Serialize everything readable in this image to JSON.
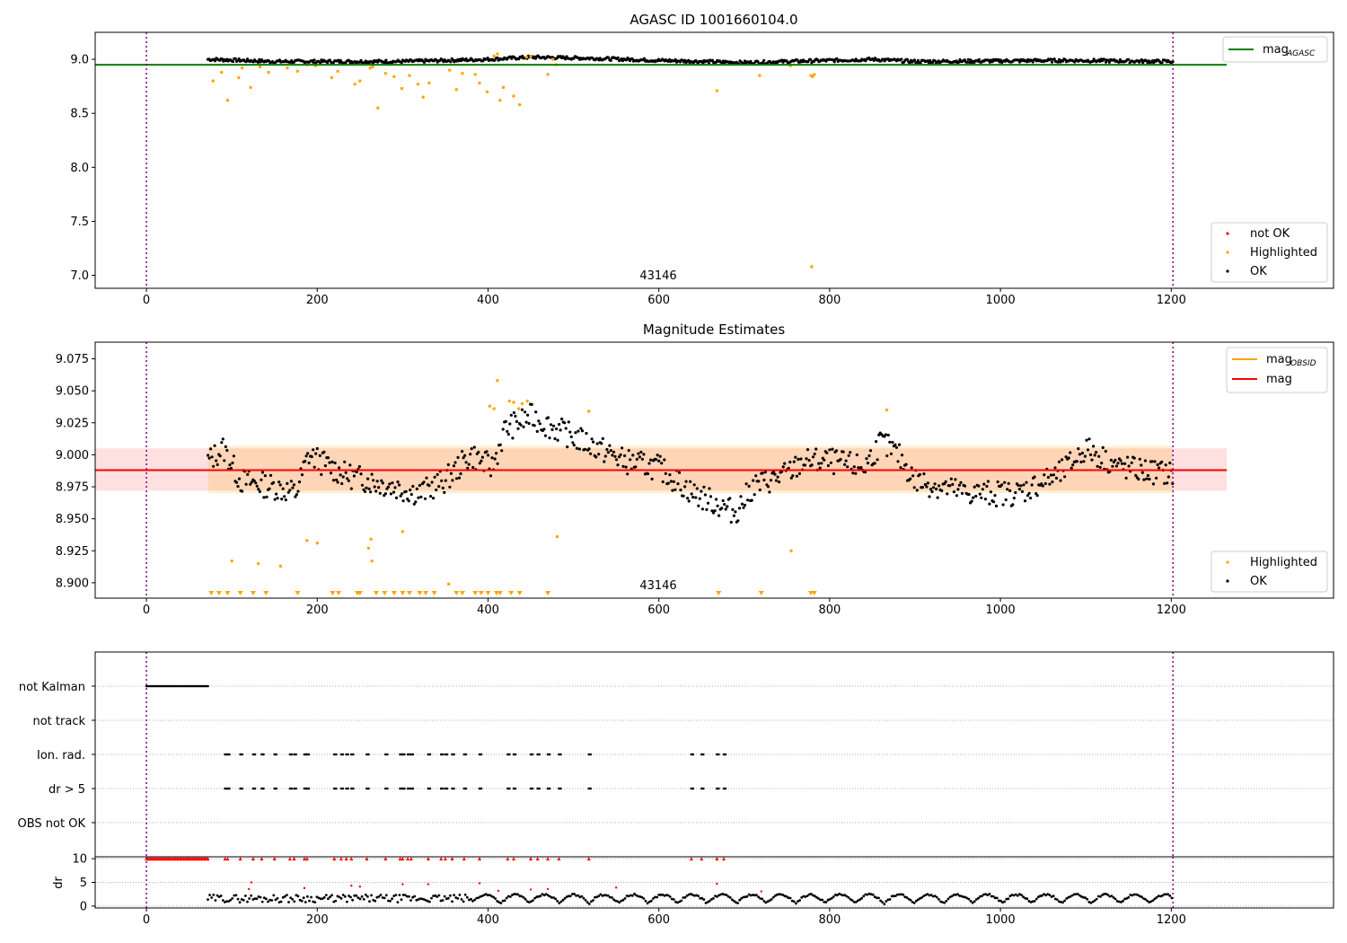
{
  "chart_data": [
    {
      "type": "scatter",
      "title": "AGASC ID 1001660104.0",
      "xlim": [
        -60,
        1390
      ],
      "ylim": [
        6.88,
        9.25
      ],
      "xticks": [
        0,
        200,
        400,
        600,
        800,
        1000,
        1200
      ],
      "yticks": [
        7.0,
        7.5,
        8.0,
        8.5,
        9.0
      ],
      "annotation": "43146",
      "vlines": [
        0,
        1202
      ],
      "reference_line": {
        "name": "mag_AGASC",
        "value": 8.95,
        "color": "#008000"
      },
      "legend_upper": [
        "mag",
        "AGASC"
      ],
      "legend_lower": [
        "not OK",
        "Highlighted",
        "OK"
      ],
      "ok_trend": [
        [
          75,
          9.0
        ],
        [
          150,
          8.98
        ],
        [
          300,
          8.98
        ],
        [
          400,
          9.0
        ],
        [
          450,
          9.02
        ],
        [
          520,
          9.01
        ],
        [
          600,
          8.99
        ],
        [
          700,
          8.97
        ],
        [
          850,
          9.0
        ],
        [
          900,
          8.98
        ],
        [
          1080,
          8.99
        ],
        [
          1200,
          8.98
        ]
      ],
      "highlighted_points": [
        [
          78,
          8.8
        ],
        [
          88,
          8.88
        ],
        [
          95,
          8.62
        ],
        [
          108,
          8.83
        ],
        [
          112,
          8.92
        ],
        [
          122,
          8.74
        ],
        [
          133,
          8.93
        ],
        [
          143,
          8.88
        ],
        [
          165,
          8.92
        ],
        [
          177,
          8.89
        ],
        [
          188,
          8.95
        ],
        [
          198,
          8.94
        ],
        [
          217,
          8.83
        ],
        [
          224,
          8.89
        ],
        [
          244,
          8.77
        ],
        [
          250,
          8.8
        ],
        [
          262,
          8.92
        ],
        [
          265,
          8.93
        ],
        [
          271,
          8.55
        ],
        [
          280,
          8.87
        ],
        [
          290,
          8.84
        ],
        [
          299,
          8.73
        ],
        [
          308,
          8.85
        ],
        [
          318,
          8.77
        ],
        [
          324,
          8.65
        ],
        [
          331,
          8.78
        ],
        [
          355,
          8.9
        ],
        [
          363,
          8.72
        ],
        [
          370,
          8.87
        ],
        [
          385,
          8.86
        ],
        [
          390,
          8.78
        ],
        [
          399,
          8.7
        ],
        [
          407,
          9.03
        ],
        [
          411,
          9.05
        ],
        [
          414,
          8.62
        ],
        [
          418,
          8.74
        ],
        [
          430,
          8.66
        ],
        [
          437,
          8.58
        ],
        [
          445,
          9.02
        ],
        [
          450,
          9.03
        ],
        [
          470,
          8.86
        ],
        [
          476,
          9.0
        ],
        [
          480,
          8.95
        ],
        [
          668,
          8.71
        ],
        [
          718,
          8.85
        ],
        [
          754,
          8.94
        ],
        [
          778,
          8.85
        ],
        [
          780,
          8.84
        ],
        [
          782,
          8.86
        ],
        [
          779,
          7.08
        ]
      ]
    },
    {
      "type": "scatter",
      "title": "Magnitude Estimates",
      "xlim": [
        -60,
        1390
      ],
      "ylim": [
        8.888,
        9.088
      ],
      "xticks": [
        0,
        200,
        400,
        600,
        800,
        1000,
        1200
      ],
      "yticks": [
        8.9,
        8.925,
        8.95,
        8.975,
        9.0,
        9.025,
        9.05,
        9.075
      ],
      "annotation": "43146",
      "vlines": [
        0,
        1202
      ],
      "mag_value": 8.988,
      "mag_band": [
        8.972,
        9.005
      ],
      "obsid_band": [
        8.97,
        9.007
      ],
      "legend_upper": [
        "mag",
        "OBSID",
        "mag"
      ],
      "legend_lower": [
        "Highlighted",
        "OK"
      ],
      "ok_trend": [
        [
          72,
          8.995
        ],
        [
          90,
          9.005
        ],
        [
          110,
          8.98
        ],
        [
          150,
          8.975
        ],
        [
          175,
          8.97
        ],
        [
          190,
          9.0
        ],
        [
          230,
          8.985
        ],
        [
          290,
          8.975
        ],
        [
          320,
          8.97
        ],
        [
          350,
          8.98
        ],
        [
          380,
          9.0
        ],
        [
          405,
          8.99
        ],
        [
          420,
          9.02
        ],
        [
          450,
          9.03
        ],
        [
          480,
          9.02
        ],
        [
          530,
          9.005
        ],
        [
          560,
          8.995
        ],
        [
          600,
          8.99
        ],
        [
          640,
          8.97
        ],
        [
          690,
          8.955
        ],
        [
          710,
          8.975
        ],
        [
          750,
          8.985
        ],
        [
          770,
          8.995
        ],
        [
          800,
          8.995
        ],
        [
          840,
          8.99
        ],
        [
          860,
          9.01
        ],
        [
          880,
          9.0
        ],
        [
          900,
          8.98
        ],
        [
          960,
          8.97
        ],
        [
          1020,
          8.97
        ],
        [
          1070,
          8.985
        ],
        [
          1100,
          9.005
        ],
        [
          1140,
          8.99
        ],
        [
          1200,
          8.985
        ]
      ],
      "highlighted_points": [
        [
          100,
          8.917
        ],
        [
          131,
          8.915
        ],
        [
          157,
          8.913
        ],
        [
          188,
          8.933
        ],
        [
          200,
          8.931
        ],
        [
          260,
          8.927
        ],
        [
          263,
          8.934
        ],
        [
          264,
          8.917
        ],
        [
          300,
          8.94
        ],
        [
          354,
          8.899
        ],
        [
          402,
          9.038
        ],
        [
          407,
          9.036
        ],
        [
          411,
          9.058
        ],
        [
          425,
          9.042
        ],
        [
          430,
          9.041
        ],
        [
          436,
          9.036
        ],
        [
          440,
          9.04
        ],
        [
          446,
          9.042
        ],
        [
          481,
          8.936
        ],
        [
          518,
          9.034
        ],
        [
          755,
          8.925
        ],
        [
          867,
          9.035
        ]
      ],
      "highlighted_lower_limits": [
        76,
        85,
        95,
        110,
        125,
        140,
        177,
        218,
        225,
        247,
        250,
        269,
        279,
        290,
        300,
        308,
        320,
        327,
        337,
        363,
        370,
        385,
        392,
        400,
        410,
        414,
        427,
        437,
        470,
        670,
        720,
        778,
        782
      ]
    },
    {
      "type": "scatter",
      "xlim": [
        -60,
        1390
      ],
      "xticks": [
        0,
        200,
        400,
        600,
        800,
        1000,
        1200
      ],
      "flag_rows": [
        "not Kalman",
        "not track",
        "Ion. rad.",
        "dr > 5",
        "OBS not OK"
      ],
      "flag_not_kalman_range": [
        0,
        72
      ],
      "flag_event_times": [
        92,
        95,
        110,
        125,
        135,
        150,
        168,
        173,
        185,
        188,
        220,
        228,
        234,
        240,
        258,
        280,
        297,
        300,
        306,
        310,
        330,
        345,
        350,
        358,
        372,
        390,
        423,
        430,
        450,
        458,
        470,
        483,
        518,
        638,
        650,
        668,
        676
      ],
      "vlines": [
        0,
        1202
      ]
    },
    {
      "type": "scatter",
      "ylabel": "dr",
      "xlim": [
        -60,
        1390
      ],
      "ylim": [
        -0.4,
        10.4
      ],
      "yticks": [
        0,
        5,
        10
      ],
      "xticks": [
        0,
        200,
        400,
        600,
        800,
        1000,
        1200
      ],
      "xticklabels": [
        "0",
        "200",
        "400",
        "600",
        "800",
        "1000",
        "1200"
      ],
      "not_ok_at_10": [
        92,
        95,
        110,
        125,
        135,
        150,
        168,
        173,
        185,
        188,
        220,
        228,
        234,
        240,
        258,
        280,
        297,
        300,
        306,
        310,
        330,
        345,
        350,
        358,
        372,
        390,
        423,
        430,
        450,
        458,
        470,
        483,
        518,
        638,
        650,
        668,
        676
      ],
      "not_ok_scattered": [
        [
          123,
          5.0
        ],
        [
          120,
          3.6
        ],
        [
          185,
          3.8
        ],
        [
          240,
          4.3
        ],
        [
          250,
          4.1
        ],
        [
          300,
          4.6
        ],
        [
          330,
          4.6
        ],
        [
          390,
          4.8
        ],
        [
          412,
          3.2
        ],
        [
          450,
          3.5
        ],
        [
          470,
          3.6
        ],
        [
          550,
          3.9
        ],
        [
          668,
          4.7
        ],
        [
          720,
          3.1
        ]
      ],
      "vlines": [
        0,
        1202
      ]
    }
  ]
}
